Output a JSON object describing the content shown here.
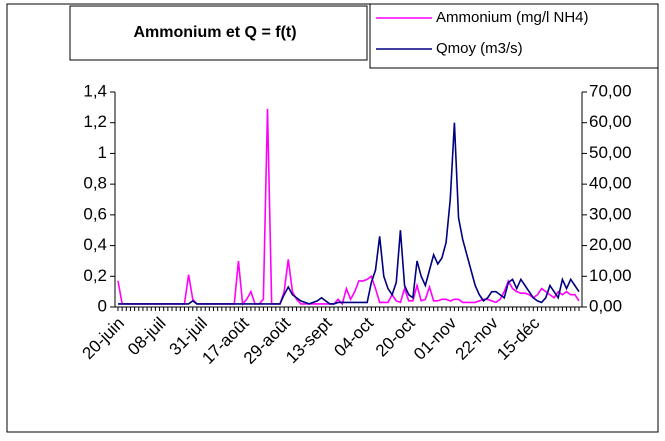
{
  "chart_data": {
    "type": "line",
    "title": "Ammonium et Q = f(t)",
    "categories": [
      "20-juin",
      null,
      null,
      null,
      null,
      null,
      null,
      null,
      null,
      null,
      "08-juil",
      null,
      null,
      null,
      null,
      null,
      null,
      null,
      null,
      null,
      "31-juil",
      null,
      null,
      null,
      null,
      null,
      null,
      null,
      null,
      null,
      "17-août",
      null,
      null,
      null,
      null,
      null,
      null,
      null,
      null,
      null,
      "29-août",
      null,
      null,
      null,
      null,
      null,
      null,
      null,
      null,
      null,
      "13-sept",
      null,
      null,
      null,
      null,
      null,
      null,
      null,
      null,
      null,
      "04-oct",
      null,
      null,
      null,
      null,
      null,
      null,
      null,
      null,
      null,
      "20-oct",
      null,
      null,
      null,
      null,
      null,
      null,
      null,
      null,
      null,
      "01-nov",
      null,
      null,
      null,
      null,
      null,
      null,
      null,
      null,
      null,
      "22-nov",
      null,
      null,
      null,
      null,
      null,
      null,
      null,
      null,
      null,
      "15-déc",
      null,
      null,
      null,
      null,
      null,
      null,
      null,
      null,
      null,
      null,
      null
    ],
    "series": [
      {
        "name": "Ammonium (mg/l NH4)",
        "color": "#ff00ff",
        "axis": "y",
        "values": [
          0.17,
          0.02,
          0.02,
          0.02,
          0.02,
          0.02,
          0.02,
          0.02,
          0.02,
          0.02,
          0.02,
          0.02,
          0.02,
          0.02,
          0.02,
          0.02,
          0.02,
          0.21,
          0.05,
          0.02,
          0.02,
          0.02,
          0.02,
          0.02,
          0.02,
          0.02,
          0.02,
          0.02,
          0.02,
          0.3,
          0.02,
          0.05,
          0.1,
          0.02,
          0.02,
          0.05,
          1.29,
          0.02,
          0.02,
          0.02,
          0.1,
          0.31,
          0.1,
          0.05,
          0.02,
          0.02,
          0.02,
          0.02,
          0.02,
          0.02,
          0.02,
          0.02,
          0.02,
          0.05,
          0.02,
          0.12,
          0.05,
          0.1,
          0.17,
          0.17,
          0.18,
          0.2,
          0.12,
          0.03,
          0.03,
          0.03,
          0.08,
          0.04,
          0.03,
          0.12,
          0.04,
          0.04,
          0.14,
          0.04,
          0.05,
          0.13,
          0.04,
          0.04,
          0.05,
          0.05,
          0.04,
          0.05,
          0.05,
          0.03,
          0.03,
          0.03,
          0.03,
          0.04,
          0.05,
          0.05,
          0.04,
          0.03,
          0.05,
          0.1,
          0.17,
          0.12,
          0.1,
          0.09,
          0.09,
          0.08,
          0.06,
          0.08,
          0.12,
          0.1,
          0.08,
          0.06,
          0.1,
          0.08,
          0.1,
          0.08,
          0.08,
          0.04
        ]
      },
      {
        "name": "Qmoy (m3/s)",
        "color": "#000080",
        "axis": "y2",
        "values": [
          1,
          1,
          1,
          1,
          1,
          1,
          1,
          1,
          1,
          1,
          1,
          1,
          1,
          1,
          1,
          1,
          1,
          1,
          2,
          1,
          1,
          1,
          1,
          1,
          1,
          1,
          1,
          1,
          1,
          1,
          1,
          1,
          1,
          1,
          1,
          1,
          1,
          1,
          1,
          1,
          4,
          6.5,
          4,
          3,
          2,
          1.5,
          1,
          1.5,
          2,
          3,
          2,
          1,
          1,
          1.5,
          1.5,
          1.5,
          1.5,
          1.5,
          1.5,
          1.5,
          1.5,
          8,
          12,
          23,
          10,
          6,
          4,
          8,
          25,
          7,
          4,
          3,
          15,
          10,
          7,
          12,
          17,
          14,
          16,
          21,
          35,
          60,
          29,
          22,
          17,
          12,
          7,
          4,
          2,
          3,
          5,
          5,
          4,
          3,
          8,
          9,
          6,
          9,
          7,
          5,
          3,
          2,
          1.5,
          3,
          7,
          5,
          3,
          9,
          6,
          9,
          7,
          5
        ]
      }
    ],
    "ylim": [
      0,
      1.4
    ],
    "yticks": [
      0,
      {
        "value": 0.2,
        "label": "0,2"
      },
      {
        "value": 0.4,
        "label": "0,4"
      },
      {
        "value": 0.6,
        "label": "0,6"
      },
      {
        "value": 0.8,
        "label": "0,8"
      },
      1,
      {
        "value": 1.2,
        "label": "1,2"
      },
      {
        "value": 1.4,
        "label": "1,4"
      }
    ],
    "y2lim": [
      0,
      70
    ],
    "y2ticks": [
      {
        "value": 0,
        "label": "0,00"
      },
      {
        "value": 10,
        "label": "10,00"
      },
      {
        "value": 20,
        "label": "20,00"
      },
      {
        "value": 30,
        "label": "30,00"
      },
      {
        "value": 40,
        "label": "40,00"
      },
      {
        "value": 50,
        "label": "50,00"
      },
      {
        "value": 60,
        "label": "60,00"
      },
      {
        "value": 70,
        "label": "70,00"
      }
    ]
  }
}
